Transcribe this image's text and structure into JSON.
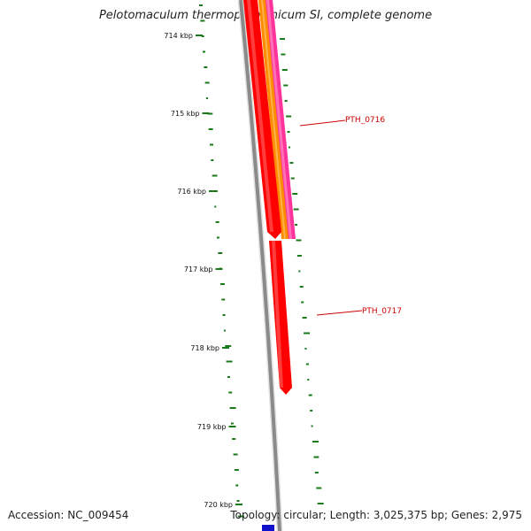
{
  "title": "Pelotomaculum thermopropionicum SI, complete genome",
  "footer": {
    "accession": "Accession: NC_009454",
    "summary": "Topology: circular; Length: 3,025,375 bp; Genes: 2,975"
  },
  "ticks": [
    "714 kbp",
    "715 kbp",
    "716 kbp",
    "717 kbp",
    "718 kbp",
    "719 kbp",
    "720 kbp"
  ],
  "genes": [
    {
      "label": "PTH_0716",
      "color": "#cc0000"
    },
    {
      "label": "PTH_0717",
      "color": "#cc0000"
    }
  ],
  "colors": {
    "cds_red": "#ff0000",
    "cds_orange": "#ff8c00",
    "cds_pink": "#ff3399",
    "backbone": "#888888",
    "gc_dots": "#1a7a1a",
    "marker_blue": "#1010cc"
  }
}
